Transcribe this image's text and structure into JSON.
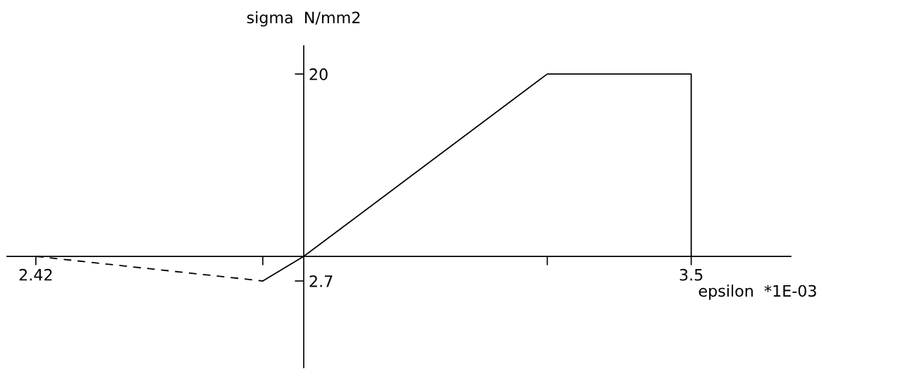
{
  "chart_data": {
    "type": "line",
    "xlabel": "epsilon  *1E-03",
    "ylabel": "sigma  N/mm2",
    "series": [
      {
        "color": "#000000",
        "line_style": "dashed",
        "x": [
          -2.42,
          -0.37
        ],
        "values": [
          0,
          -2.7
        ]
      },
      {
        "color": "#000000",
        "line_style": "solid",
        "x": [
          -0.37,
          0,
          2.2,
          3.5,
          3.5
        ],
        "values": [
          -2.7,
          0,
          20,
          20,
          0
        ]
      }
    ],
    "xlim": [
      -2.68,
      4.4
    ],
    "ylim": [
      -12.2,
      23.1
    ],
    "xticks": [
      {
        "value": -2.42,
        "label": "2.42"
      },
      {
        "value": -0.37,
        "label": null
      },
      {
        "value": 2.2,
        "label": null
      },
      3.5
    ],
    "yticks": [
      {
        "value": -2.7,
        "label": "2.7"
      },
      20
    ],
    "grid": false,
    "legend": false,
    "marker": "none"
  }
}
